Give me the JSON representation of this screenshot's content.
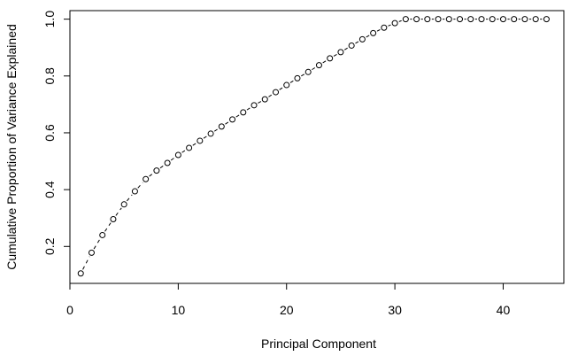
{
  "chart_data": {
    "type": "scatter",
    "title": "",
    "xlabel": "Principal Component",
    "ylabel": "Cumulative Proportion of Variance Explained",
    "xlim": [
      0,
      45.6
    ],
    "ylim": [
      0.07,
      1.03
    ],
    "xticks": [
      0,
      10,
      20,
      30,
      40
    ],
    "xtick_labels": [
      "0",
      "10",
      "20",
      "30",
      "40"
    ],
    "yticks": [
      0.2,
      0.4,
      0.6,
      0.8,
      1.0
    ],
    "ytick_labels": [
      "0.2",
      "0.4",
      "0.6",
      "0.8",
      "1.0"
    ],
    "grid": false,
    "marker": "open-circle",
    "line": "dashed",
    "series": [
      {
        "x": [
          1,
          2,
          3,
          4,
          5,
          6,
          7,
          8,
          9,
          10,
          11,
          12,
          13,
          14,
          15,
          16,
          17,
          18,
          19,
          20,
          21,
          22,
          23,
          24,
          25,
          26,
          27,
          28,
          29,
          30,
          31,
          32,
          33,
          34,
          35,
          36,
          37,
          38,
          39,
          40,
          41,
          42,
          43,
          44
        ],
        "y": [
          0.105,
          0.178,
          0.24,
          0.296,
          0.348,
          0.394,
          0.437,
          0.467,
          0.494,
          0.522,
          0.547,
          0.572,
          0.597,
          0.622,
          0.647,
          0.672,
          0.697,
          0.718,
          0.743,
          0.768,
          0.792,
          0.814,
          0.838,
          0.862,
          0.884,
          0.907,
          0.929,
          0.951,
          0.97,
          0.986,
          1.0,
          1.0,
          1.0,
          1.0,
          1.0,
          1.0,
          1.0,
          1.0,
          1.0,
          1.0,
          1.0,
          1.0,
          1.0,
          1.0
        ]
      }
    ]
  }
}
